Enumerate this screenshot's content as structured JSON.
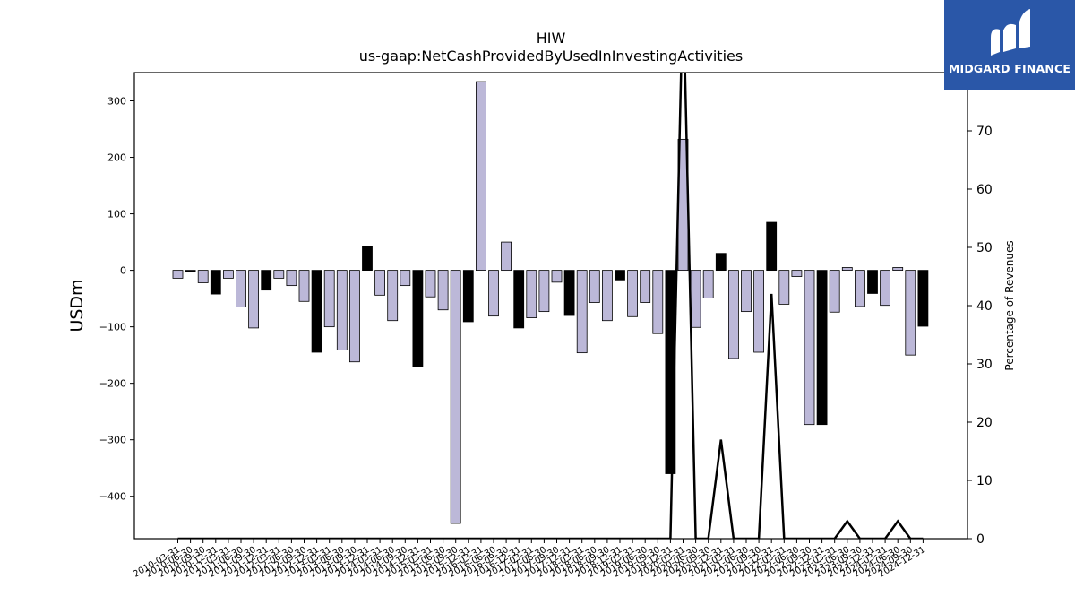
{
  "logo": {
    "text": "MIDGARD FINANCE"
  },
  "chart_data": {
    "type": "bar",
    "title": "HIW",
    "subtitle": "us-gaap:NetCashProvidedByUsedInInvestingActivities",
    "ylabel": "USDm",
    "ylabel_right": "Percentage of Revenues",
    "ylim": [
      -475,
      350
    ],
    "ylim_right": [
      0,
      80
    ],
    "yticks": [
      -400,
      -300,
      -200,
      -100,
      0,
      100,
      200,
      300
    ],
    "yticks_right": [
      0,
      10,
      20,
      30,
      40,
      50,
      60,
      70
    ],
    "colors": {
      "quarter": "#bcb8d8",
      "annual": "#000000",
      "line": "#000000"
    },
    "categories": [
      "2010-03-31",
      "2010-06-30",
      "2010-09-30",
      "2010-12-31",
      "2011-03-31",
      "2011-06-30",
      "2011-09-30",
      "2011-12-31",
      "2012-03-31",
      "2012-06-30",
      "2012-09-30",
      "2012-12-31",
      "2013-03-31",
      "2013-06-30",
      "2013-09-30",
      "2013-12-31",
      "2014-03-31",
      "2014-06-30",
      "2014-09-30",
      "2014-12-31",
      "2015-03-31",
      "2015-06-30",
      "2015-09-30",
      "2015-12-31",
      "2016-03-31",
      "2016-06-30",
      "2016-09-30",
      "2016-12-31",
      "2017-03-31",
      "2017-06-30",
      "2017-09-30",
      "2017-12-31",
      "2018-03-31",
      "2018-06-30",
      "2018-09-30",
      "2018-12-31",
      "2019-03-31",
      "2019-06-30",
      "2019-09-30",
      "2019-12-31",
      "2020-03-31",
      "2020-06-30",
      "2020-09-30",
      "2020-12-31",
      "2021-03-31",
      "2021-06-30",
      "2021-09-30",
      "2021-12-31",
      "2022-03-31",
      "2022-06-30",
      "2022-09-30",
      "2022-12-31",
      "2023-03-31",
      "2023-06-30",
      "2023-09-30",
      "2023-12-31",
      "2024-03-31",
      "2024-06-30",
      "2024-09-30",
      "2024-12-31"
    ],
    "values": [
      -14,
      -2,
      -22,
      -42,
      -14,
      -65,
      -102,
      -35,
      -14,
      -27,
      -55,
      -145,
      -100,
      -141,
      -162,
      43,
      -44,
      -89,
      -27,
      -170,
      -47,
      -70,
      -448,
      -91,
      334,
      -81,
      50,
      -102,
      -84,
      -73,
      -21,
      -80,
      -146,
      -57,
      -89,
      -17,
      -82,
      -57,
      -112,
      -360,
      232,
      -101,
      -49,
      30,
      -156,
      -73,
      -145,
      85,
      -60,
      -11,
      -273,
      -273,
      -74,
      5,
      -64,
      -41,
      -62,
      5,
      -150,
      -99
    ],
    "annual_flags": [
      0,
      1,
      0,
      1,
      0,
      0,
      0,
      1,
      0,
      0,
      0,
      1,
      0,
      0,
      0,
      1,
      0,
      0,
      0,
      1,
      0,
      0,
      0,
      1,
      0,
      0,
      0,
      1,
      0,
      0,
      0,
      1,
      0,
      0,
      0,
      1,
      0,
      0,
      0,
      1,
      0,
      0,
      0,
      1,
      0,
      0,
      0,
      1,
      0,
      0,
      0,
      1,
      0,
      0,
      0,
      1,
      0,
      0,
      0,
      1
    ],
    "pct_revenues": [
      0,
      0,
      0,
      0,
      0,
      0,
      0,
      0,
      0,
      0,
      0,
      0,
      0,
      0,
      0,
      0,
      0,
      0,
      0,
      0,
      0,
      0,
      0,
      0,
      0,
      0,
      0,
      0,
      0,
      0,
      0,
      0,
      0,
      0,
      0,
      0,
      0,
      0,
      0,
      0,
      95,
      0,
      0,
      17,
      0,
      0,
      0,
      42,
      0,
      0,
      0,
      0,
      0,
      3,
      0,
      0,
      0,
      3,
      0,
      0
    ]
  }
}
